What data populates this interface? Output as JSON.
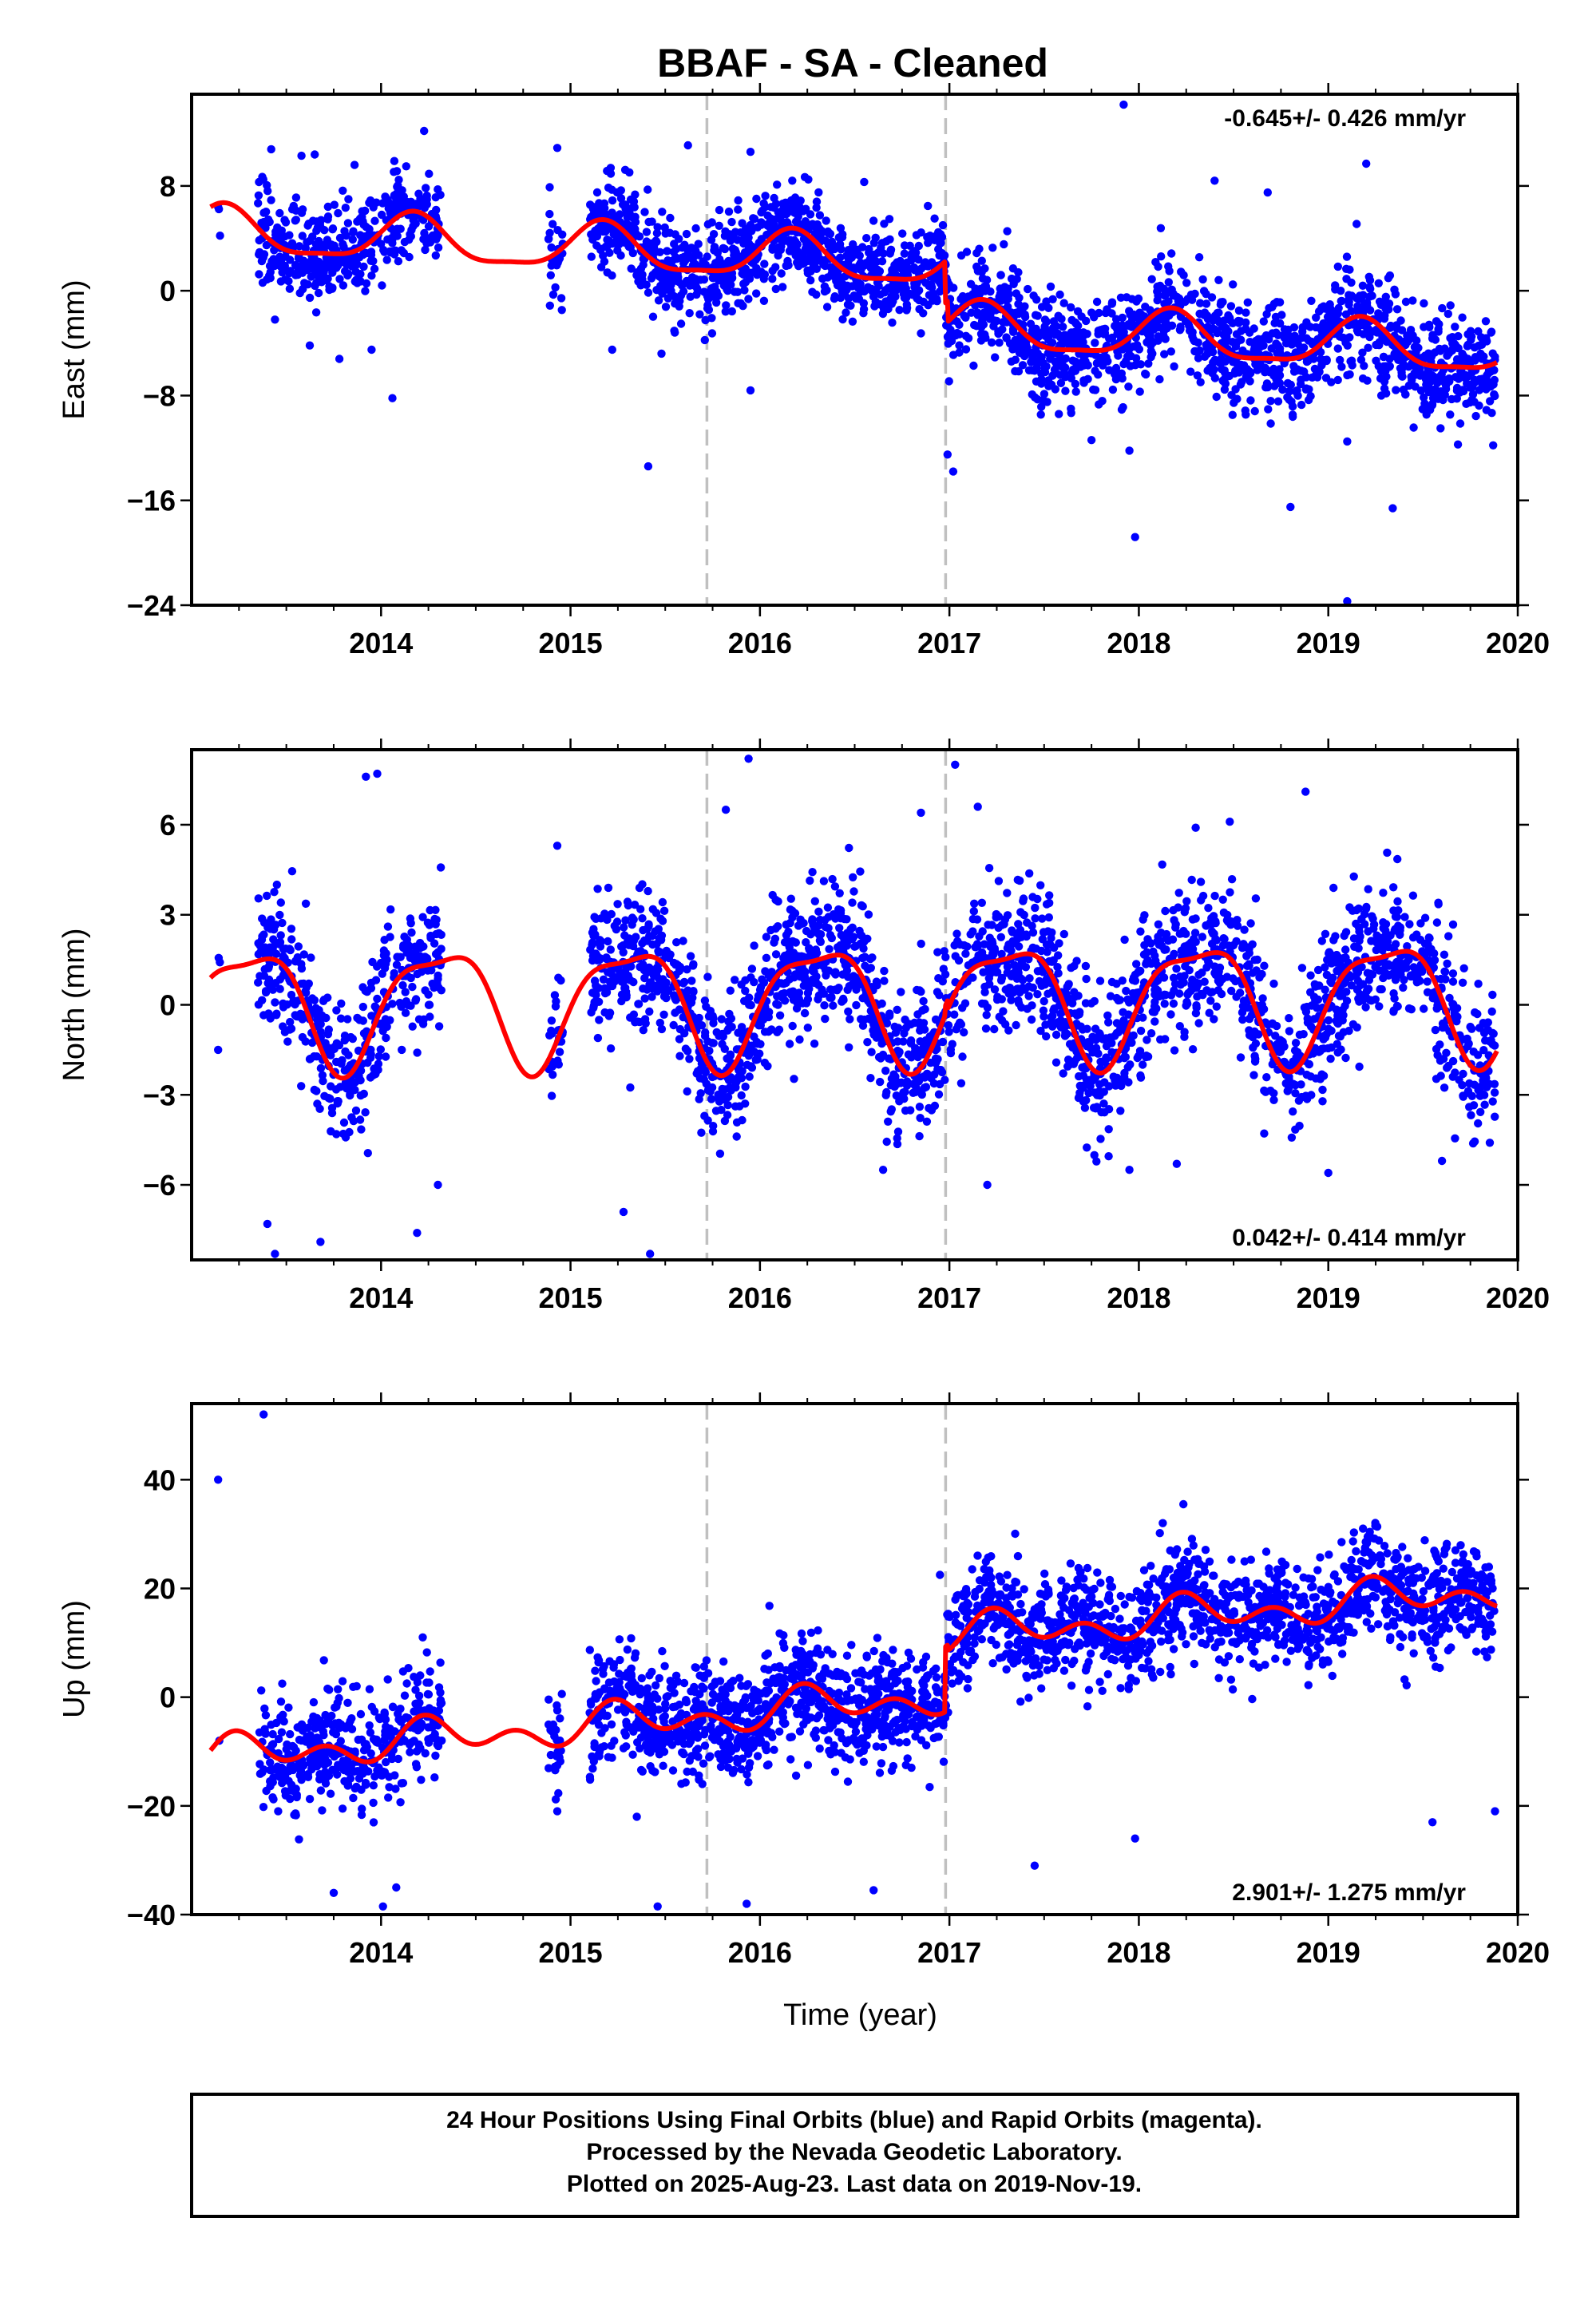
{
  "title": "BBAF  - SA - Cleaned",
  "footer": {
    "line1": "24 Hour Positions Using Final Orbits (blue) and Rapid Orbits (magenta).",
    "line2": "Processed by the Nevada Geodetic Laboratory.",
    "line3": "Plotted on 2025-Aug-23. Last data on 2019-Nov-19."
  },
  "colors": {
    "points": "#0000ff",
    "model": "#ff0000",
    "breaks": "#c0c0c0",
    "frame": "#000000"
  },
  "chart_data": [
    {
      "type": "scatter",
      "ylabel": "East (mm)",
      "xlabel": "",
      "rate_text": "-0.645+/- 0.426 mm/yr",
      "rate_position": "top-right",
      "xlim": [
        2013.0,
        2020.0
      ],
      "ylim": [
        -24,
        15
      ],
      "x_ticks": [
        2014,
        2015,
        2016,
        2017,
        2018,
        2019,
        2020
      ],
      "y_ticks": [
        8,
        0,
        -8,
        -16,
        -24
      ],
      "y_tick_labels": [
        "8",
        "0",
        "−8",
        "−16",
        "−24"
      ],
      "breaks": [
        2015.72,
        2016.98
      ],
      "series": [
        {
          "marker": "dot",
          "color": "#0000ff",
          "segments": [
            {
              "start": 2013.14,
              "end": 2013.15,
              "n": 2,
              "sd": 0.8,
              "outliers": [
                [
                  2013.15,
                  4.2
                ]
              ]
            },
            {
              "start": 2013.35,
              "end": 2014.32,
              "n": 420,
              "sd": 1.8,
              "outliers": [
                [
                  2013.42,
                  10.8
                ],
                [
                  2013.58,
                  10.3
                ],
                [
                  2013.65,
                  10.4
                ],
                [
                  2013.86,
                  9.6
                ],
                [
                  2014.07,
                  9.9
                ],
                [
                  2013.95,
                  -4.5
                ],
                [
                  2013.78,
                  -5.2
                ],
                [
                  2014.06,
                  -8.2
                ],
                [
                  2013.44,
                  -2.2
                ]
              ]
            },
            {
              "start": 2014.88,
              "end": 2014.96,
              "n": 25,
              "sd": 2.5,
              "outliers": [
                [
                  2014.93,
                  10.9
                ],
                [
                  2014.89,
                  7.9
                ]
              ]
            },
            {
              "start": 2015.1,
              "end": 2015.72,
              "n": 300,
              "sd": 1.8,
              "outliers": [
                [
                  2015.41,
                  -13.4
                ],
                [
                  2015.62,
                  11.1
                ],
                [
                  2015.48,
                  -4.8
                ],
                [
                  2015.22,
                  -4.5
                ]
              ]
            },
            {
              "start": 2015.72,
              "end": 2016.98,
              "n": 650,
              "sd": 1.8,
              "outliers": [
                [
                  2015.95,
                  10.6
                ],
                [
                  2015.95,
                  -7.6
                ],
                [
                  2016.55,
                  8.3
                ],
                [
                  2016.3,
                  6.8
                ]
              ]
            },
            {
              "start": 2016.98,
              "end": 2019.88,
              "n": 1350,
              "sd": 2.0,
              "outliers": [
                [
                  2017.92,
                  14.2
                ],
                [
                  2017.98,
                  -18.8
                ],
                [
                  2018.8,
                  -16.5
                ],
                [
                  2019.1,
                  -11.5
                ],
                [
                  2019.34,
                  -16.6
                ],
                [
                  2019.1,
                  -23.7
                ],
                [
                  2019.87,
                  -11.8
                ],
                [
                  2018.4,
                  8.4
                ],
                [
                  2018.68,
                  7.5
                ],
                [
                  2019.2,
                  9.7
                ],
                [
                  2016.99,
                  -12.5
                ],
                [
                  2017.02,
                  -13.8
                ],
                [
                  2017.95,
                  -12.2
                ],
                [
                  2017.75,
                  -11.4
                ]
              ]
            }
          ]
        },
        {
          "name": "",
          "type": "line",
          "color": "#ff0000",
          "model": {
            "offsets": [
              [
                2013.1,
                4.5
              ],
              [
                2016.98,
                1.3
              ],
              [
                2016.99,
                -0.3
              ]
            ],
            "rate": -0.645,
            "t0": 2013.1,
            "annual": [
              0.75,
              1.6,
              0.1
            ],
            "semiannual": [
              0.4,
              0.3
            ]
          }
        }
      ]
    },
    {
      "type": "scatter",
      "ylabel": "North (mm)",
      "xlabel": "",
      "rate_text": "0.042+/- 0.414 mm/yr",
      "rate_position": "bottom-right",
      "xlim": [
        2013.0,
        2020.0
      ],
      "ylim": [
        -8.5,
        8.5
      ],
      "x_ticks": [
        2014,
        2015,
        2016,
        2017,
        2018,
        2019,
        2020
      ],
      "y_ticks": [
        6,
        3,
        0,
        -3,
        -6
      ],
      "y_tick_labels": [
        "6",
        "3",
        "0",
        "−3",
        "−6"
      ],
      "breaks": [
        2015.72,
        2016.98
      ],
      "series": [
        {
          "marker": "dot",
          "color": "#0000ff",
          "segments": [
            {
              "start": 2013.14,
              "end": 2013.15,
              "n": 2,
              "sd": 0.3,
              "outliers": [
                [
                  2013.14,
                  -1.5
                ]
              ]
            },
            {
              "start": 2013.35,
              "end": 2014.32,
              "n": 420,
              "sd": 1.2,
              "outliers": [
                [
                  2013.92,
                  7.6
                ],
                [
                  2013.98,
                  7.7
                ],
                [
                  2013.44,
                  -8.3
                ],
                [
                  2013.4,
                  -7.3
                ],
                [
                  2013.68,
                  -7.9
                ],
                [
                  2014.19,
                  -7.6
                ],
                [
                  2014.3,
                  -6.0
                ],
                [
                  2013.45,
                  4.0
                ]
              ]
            },
            {
              "start": 2014.88,
              "end": 2014.96,
              "n": 25,
              "sd": 1.0,
              "outliers": [
                [
                  2014.93,
                  5.3
                ]
              ]
            },
            {
              "start": 2015.1,
              "end": 2015.72,
              "n": 300,
              "sd": 1.1,
              "outliers": [
                [
                  2015.2,
                  3.9
                ],
                [
                  2015.42,
                  -8.3
                ],
                [
                  2015.28,
                  -6.9
                ]
              ]
            },
            {
              "start": 2015.72,
              "end": 2016.98,
              "n": 650,
              "sd": 1.2,
              "outliers": [
                [
                  2015.94,
                  8.2
                ],
                [
                  2015.82,
                  6.5
                ],
                [
                  2016.65,
                  -5.5
                ],
                [
                  2016.85,
                  6.4
                ]
              ]
            },
            {
              "start": 2016.98,
              "end": 2019.88,
              "n": 1350,
              "sd": 1.2,
              "outliers": [
                [
                  2017.03,
                  8.0
                ],
                [
                  2017.15,
                  6.6
                ],
                [
                  2018.3,
                  5.9
                ],
                [
                  2018.48,
                  6.1
                ],
                [
                  2018.88,
                  7.1
                ],
                [
                  2017.95,
                  -5.5
                ],
                [
                  2018.2,
                  -5.3
                ],
                [
                  2019.0,
                  -5.6
                ],
                [
                  2019.6,
                  -5.2
                ],
                [
                  2017.2,
                  -6.0
                ]
              ]
            }
          ]
        },
        {
          "name": "",
          "type": "line",
          "color": "#ff0000",
          "model": {
            "offsets": [
              [
                2013.1,
                0.0
              ],
              [
                2016.98,
                0.3
              ],
              [
                2016.99,
                0.0
              ]
            ],
            "rate": 0.042,
            "t0": 2013.1,
            "annual": [
              1.85,
              0.5,
              -1.0
            ],
            "semiannual": [
              -0.4,
              0.4
            ]
          }
        }
      ]
    },
    {
      "type": "scatter",
      "ylabel": "Up (mm)",
      "xlabel": "Time (year)",
      "rate_text": "2.901+/- 1.275 mm/yr",
      "rate_position": "bottom-right",
      "xlim": [
        2013.0,
        2020.0
      ],
      "ylim": [
        -40,
        54
      ],
      "x_ticks": [
        2014,
        2015,
        2016,
        2017,
        2018,
        2019,
        2020
      ],
      "y_ticks": [
        40,
        20,
        0,
        -20,
        -40
      ],
      "y_tick_labels": [
        "40",
        "20",
        "0",
        "−20",
        "−40"
      ],
      "breaks": [
        2015.72,
        2016.98
      ],
      "series": [
        {
          "marker": "dot",
          "color": "#0000ff",
          "segments": [
            {
              "start": 2013.14,
              "end": 2013.15,
              "n": 1,
              "sd": 0.5,
              "outliers": [
                [
                  2013.14,
                  40.0
                ]
              ]
            },
            {
              "start": 2013.35,
              "end": 2014.32,
              "n": 420,
              "sd": 5.5,
              "outliers": [
                [
                  2013.38,
                  52.0
                ],
                [
                  2014.01,
                  -38.5
                ],
                [
                  2013.75,
                  -36.0
                ],
                [
                  2014.08,
                  -35.0
                ],
                [
                  2014.22,
                  11.0
                ]
              ]
            },
            {
              "start": 2014.88,
              "end": 2014.96,
              "n": 25,
              "sd": 5.0,
              "outliers": [
                [
                  2014.93,
                  -21.0
                ]
              ]
            },
            {
              "start": 2015.1,
              "end": 2015.72,
              "n": 300,
              "sd": 5.0,
              "outliers": [
                [
                  2015.46,
                  -38.5
                ],
                [
                  2015.35,
                  -22.0
                ]
              ]
            },
            {
              "start": 2015.72,
              "end": 2016.98,
              "n": 650,
              "sd": 5.0,
              "outliers": [
                [
                  2015.93,
                  -38.0
                ],
                [
                  2016.6,
                  -35.5
                ],
                [
                  2016.05,
                  16.8
                ],
                [
                  2016.95,
                  22.5
                ]
              ]
            },
            {
              "start": 2016.98,
              "end": 2019.88,
              "n": 1350,
              "sd": 5.0,
              "outliers": [
                [
                  2017.45,
                  -31.0
                ],
                [
                  2017.98,
                  -26.0
                ],
                [
                  2018.2,
                  20.5
                ],
                [
                  2018.27,
                  20.3
                ],
                [
                  2019.55,
                  -23.0
                ],
                [
                  2019.88,
                  -21.0
                ]
              ]
            }
          ]
        },
        {
          "name": "",
          "type": "line",
          "color": "#ff0000",
          "model": {
            "offsets": [
              [
                2013.1,
                -11.0
              ],
              [
                2016.98,
                1.0
              ],
              [
                2016.99,
                0.0
              ]
            ],
            "rate": 2.901,
            "t0": 2013.1,
            "annual": [
              2.0,
              1.0,
              0.6
            ],
            "semiannual": [
              2.3,
              0.2
            ]
          }
        }
      ]
    }
  ]
}
